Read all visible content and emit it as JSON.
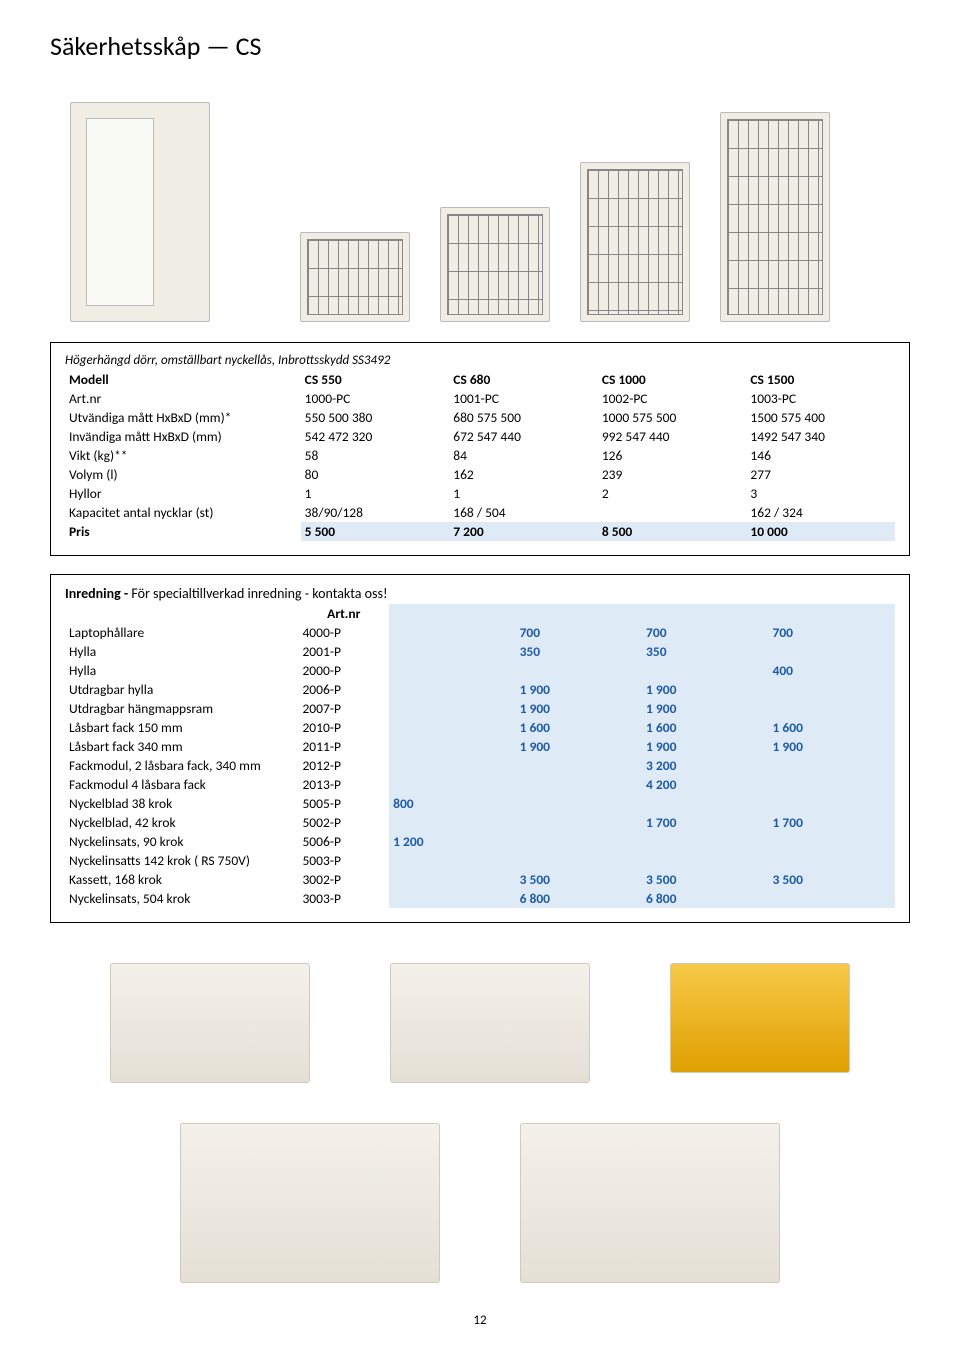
{
  "title": "Säkerhetsskåp — CS",
  "spec_panel": {
    "note": "Högerhängd dörr, omställbart nyckellås, Inbrottsskydd SS3492",
    "rows": [
      {
        "label": "Modell",
        "bold": true,
        "cells": [
          "CS 550",
          "CS 680",
          "CS 1000",
          "CS 1500"
        ]
      },
      {
        "label": "Art.nr",
        "cells": [
          "1000-PC",
          "1001-PC",
          "1002-PC",
          "1003-PC"
        ]
      },
      {
        "label": "Utvändiga mått HxBxD (mm)*",
        "cells": [
          "550 500 380",
          "680 575 500",
          "1000 575 500",
          "1500 575 400"
        ]
      },
      {
        "label": "Invändiga mått HxBxD (mm)",
        "cells": [
          "542 472 320",
          "672 547 440",
          "992 547 440",
          "1492 547 340"
        ]
      },
      {
        "label": "Vikt (kg)**",
        "cells": [
          "58",
          "84",
          "126",
          "146"
        ]
      },
      {
        "label": "Volym (l)",
        "cells": [
          "80",
          "162",
          "239",
          "277"
        ]
      },
      {
        "label": "Hyllor",
        "cells": [
          "1",
          "1",
          "2",
          "3"
        ]
      },
      {
        "label": "Kapacitet antal nycklar (st)",
        "cells": [
          "38/90/128",
          "168 / 504",
          "",
          "162 / 324"
        ]
      }
    ],
    "price_row": {
      "label": "Pris",
      "cells": [
        "5 500",
        "7 200",
        "8 500",
        "10 000"
      ]
    }
  },
  "inred_panel": {
    "heading_bold": "Inredning -",
    "heading_rest": " För specialtillverkad inredning - kontakta oss!",
    "art_label": "Art.nr",
    "rows": [
      {
        "name": "Laptophållare",
        "art": "4000-P",
        "p": [
          "",
          "700",
          "700",
          "700"
        ]
      },
      {
        "name": "Hylla",
        "art": "2001-P",
        "p": [
          "",
          "350",
          "350",
          ""
        ]
      },
      {
        "name": "Hylla",
        "art": "2000-P",
        "p": [
          "",
          "",
          "",
          "400"
        ]
      },
      {
        "name": "Utdragbar hylla",
        "art": "2006-P",
        "p": [
          "",
          "1 900",
          "1 900",
          ""
        ]
      },
      {
        "name": "Utdragbar hängmappsram",
        "art": "2007-P",
        "p": [
          "",
          "1 900",
          "1 900",
          ""
        ]
      },
      {
        "name": "Låsbart fack 150 mm",
        "art": "2010-P",
        "p": [
          "",
          "1 600",
          "1 600",
          "1 600"
        ]
      },
      {
        "name": "Låsbart fack 340 mm",
        "art": "2011-P",
        "p": [
          "",
          "1 900",
          "1 900",
          "1 900"
        ]
      },
      {
        "name": "Fackmodul, 2 låsbara fack, 340 mm",
        "art": "2012-P",
        "p": [
          "",
          "",
          "3 200",
          ""
        ]
      },
      {
        "name": "Fackmodul 4 låsbara fack",
        "art": "2013-P",
        "p": [
          "",
          "",
          "4 200",
          ""
        ]
      },
      {
        "name": "Nyckelblad 38 krok",
        "art": "5005-P",
        "p": [
          "800",
          "",
          "",
          ""
        ]
      },
      {
        "name": "Nyckelblad, 42 krok",
        "art": "5002-P",
        "p": [
          "",
          "",
          "1 700",
          "1 700"
        ]
      },
      {
        "name": "Nyckelinsats, 90 krok",
        "art": "5006-P",
        "p": [
          "1 200",
          "",
          "",
          ""
        ]
      },
      {
        "name": "Nyckelinsatts 142 krok ( RS 750V)",
        "art": "5003-P",
        "p": [
          "",
          "",
          "",
          ""
        ]
      },
      {
        "name": "Kassett, 168 krok",
        "art": "3002-P",
        "p": [
          "",
          "3 500",
          "3 500",
          "3 500"
        ]
      },
      {
        "name": "Nyckelinsats, 504 krok",
        "art": "3003-P",
        "p": [
          "",
          "6 800",
          "6 800",
          ""
        ]
      }
    ]
  },
  "page_number": "12"
}
